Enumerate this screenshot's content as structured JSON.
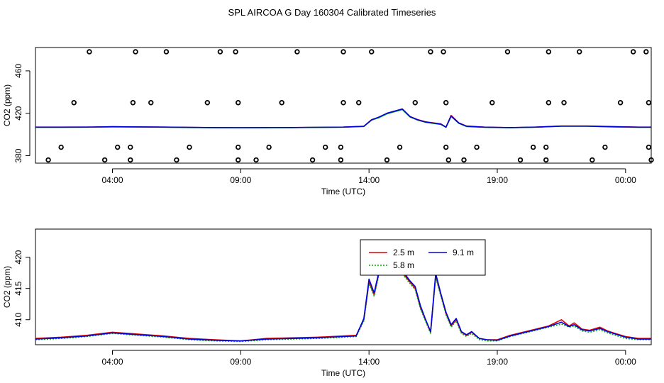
{
  "page": {
    "title": "SPL AIRCOA G  Day 160304  Calibrated Timeseries"
  },
  "colors": {
    "red": "#e00000",
    "green": "#00b000",
    "blue": "#0000e0",
    "axis": "#000000"
  },
  "chart_data": [
    {
      "type": "scatter",
      "xlabel": "Time (UTC)",
      "ylabel": "CO2 (ppm)",
      "xlim": [
        0,
        24
      ],
      "ylim": [
        373,
        482
      ],
      "xticks": [
        {
          "v": 3,
          "label": "04:00"
        },
        {
          "v": 8,
          "label": "09:00"
        },
        {
          "v": 13,
          "label": "14:00"
        },
        {
          "v": 18,
          "label": "19:00"
        },
        {
          "v": 23,
          "label": "00:00"
        }
      ],
      "yticks": [
        {
          "v": 380,
          "label": "380"
        },
        {
          "v": 420,
          "label": "420"
        },
        {
          "v": 460,
          "label": "460"
        }
      ],
      "grid": false,
      "points": [
        {
          "x": 0.5,
          "y": 376
        },
        {
          "x": 1.0,
          "y": 388
        },
        {
          "x": 1.5,
          "y": 430
        },
        {
          "x": 2.1,
          "y": 478
        },
        {
          "x": 2.7,
          "y": 376
        },
        {
          "x": 3.2,
          "y": 388
        },
        {
          "x": 3.7,
          "y": 388
        },
        {
          "x": 3.7,
          "y": 376
        },
        {
          "x": 3.8,
          "y": 430
        },
        {
          "x": 3.9,
          "y": 478
        },
        {
          "x": 4.5,
          "y": 430
        },
        {
          "x": 5.1,
          "y": 478
        },
        {
          "x": 5.5,
          "y": 376
        },
        {
          "x": 6.0,
          "y": 388
        },
        {
          "x": 6.7,
          "y": 430
        },
        {
          "x": 7.2,
          "y": 478
        },
        {
          "x": 7.8,
          "y": 478
        },
        {
          "x": 7.9,
          "y": 430
        },
        {
          "x": 7.9,
          "y": 388
        },
        {
          "x": 7.9,
          "y": 376
        },
        {
          "x": 8.6,
          "y": 376
        },
        {
          "x": 9.1,
          "y": 388
        },
        {
          "x": 9.6,
          "y": 430
        },
        {
          "x": 10.2,
          "y": 478
        },
        {
          "x": 10.8,
          "y": 376
        },
        {
          "x": 11.3,
          "y": 388
        },
        {
          "x": 11.9,
          "y": 388
        },
        {
          "x": 11.9,
          "y": 376
        },
        {
          "x": 12.0,
          "y": 430
        },
        {
          "x": 12.0,
          "y": 478
        },
        {
          "x": 12.6,
          "y": 430
        },
        {
          "x": 13.1,
          "y": 478
        },
        {
          "x": 13.7,
          "y": 376
        },
        {
          "x": 14.2,
          "y": 388
        },
        {
          "x": 14.8,
          "y": 430
        },
        {
          "x": 15.4,
          "y": 478
        },
        {
          "x": 15.9,
          "y": 478
        },
        {
          "x": 16.0,
          "y": 430
        },
        {
          "x": 16.0,
          "y": 388
        },
        {
          "x": 16.1,
          "y": 376
        },
        {
          "x": 16.7,
          "y": 376
        },
        {
          "x": 17.2,
          "y": 388
        },
        {
          "x": 17.8,
          "y": 430
        },
        {
          "x": 18.4,
          "y": 478
        },
        {
          "x": 18.9,
          "y": 376
        },
        {
          "x": 19.4,
          "y": 388
        },
        {
          "x": 19.9,
          "y": 388
        },
        {
          "x": 19.9,
          "y": 376
        },
        {
          "x": 20.0,
          "y": 430
        },
        {
          "x": 20.0,
          "y": 478
        },
        {
          "x": 20.6,
          "y": 430
        },
        {
          "x": 21.2,
          "y": 478
        },
        {
          "x": 21.7,
          "y": 376
        },
        {
          "x": 22.2,
          "y": 388
        },
        {
          "x": 22.8,
          "y": 430
        },
        {
          "x": 23.3,
          "y": 478
        },
        {
          "x": 23.8,
          "y": 478
        },
        {
          "x": 23.9,
          "y": 430
        },
        {
          "x": 23.9,
          "y": 388
        },
        {
          "x": 24.0,
          "y": 376
        }
      ],
      "series": [
        {
          "color": "red",
          "x": [
            0,
            1,
            2,
            3,
            4,
            5,
            6,
            7,
            8,
            9,
            10,
            11,
            12,
            12.8,
            13.1,
            13.4,
            13.7,
            14,
            14.3,
            14.6,
            14.9,
            15.2,
            15.5,
            15.8,
            16,
            16.2,
            16.5,
            16.8,
            17.5,
            18.5,
            19.5,
            20.5,
            21.5,
            22.5,
            23.5,
            24
          ],
          "y": [
            407,
            407,
            407,
            407.4,
            407.2,
            407,
            406.8,
            406.5,
            406.4,
            406.5,
            406.6,
            406.8,
            407,
            407.8,
            414,
            416,
            420,
            422,
            424,
            417,
            414,
            412,
            411,
            410,
            407,
            418,
            411,
            408,
            407,
            406.5,
            407,
            408,
            408,
            407.5,
            407,
            407
          ]
        },
        {
          "color": "green",
          "x": [
            0,
            1,
            2,
            3,
            4,
            5,
            6,
            7,
            8,
            9,
            10,
            11,
            12,
            12.8,
            13.1,
            13.4,
            13.7,
            14,
            14.3,
            14.6,
            14.9,
            15.2,
            15.5,
            15.8,
            16,
            16.2,
            16.5,
            16.8,
            17.5,
            18.5,
            19.5,
            20.5,
            21.5,
            22.5,
            23.5,
            24
          ],
          "y": [
            406.8,
            406.8,
            406.9,
            407.2,
            407.1,
            406.9,
            406.6,
            406.4,
            406.3,
            406.4,
            406.5,
            406.7,
            406.9,
            407.6,
            413.5,
            416,
            419.5,
            421.5,
            423.5,
            416.5,
            413.5,
            411.5,
            410.5,
            409.5,
            406.8,
            417,
            410.5,
            407.5,
            406.8,
            406.4,
            406.9,
            407.8,
            407.8,
            407.2,
            406.8,
            406.8
          ]
        },
        {
          "color": "blue",
          "x": [
            0,
            1,
            2,
            3,
            4,
            5,
            6,
            7,
            8,
            9,
            10,
            11,
            12,
            12.8,
            13.1,
            13.4,
            13.7,
            14,
            14.3,
            14.6,
            14.9,
            15.2,
            15.5,
            15.8,
            16,
            16.2,
            16.5,
            16.8,
            17.5,
            18.5,
            19.5,
            20.5,
            21.5,
            22.5,
            23.5,
            24
          ],
          "y": [
            406.9,
            406.9,
            407,
            407.3,
            407.2,
            407,
            406.7,
            406.5,
            406.4,
            406.5,
            406.6,
            406.8,
            407,
            407.7,
            413.8,
            416.5,
            420,
            422,
            424,
            416.8,
            413.8,
            411.8,
            410.8,
            409.8,
            406.9,
            417.5,
            410.8,
            407.8,
            406.9,
            406.5,
            407,
            407.9,
            407.9,
            407.3,
            406.9,
            406.9
          ]
        }
      ]
    },
    {
      "type": "line",
      "xlabel": "Time (UTC)",
      "ylabel": "CO2 (ppm)",
      "xlim": [
        0,
        24
      ],
      "ylim": [
        406,
        424.5
      ],
      "xticks": [
        {
          "v": 3,
          "label": "04:00"
        },
        {
          "v": 8,
          "label": "09:00"
        },
        {
          "v": 13,
          "label": "14:00"
        },
        {
          "v": 18,
          "label": "19:00"
        },
        {
          "v": 23,
          "label": "00:00"
        }
      ],
      "yticks": [
        {
          "v": 410,
          "label": "410"
        },
        {
          "v": 415,
          "label": "415"
        },
        {
          "v": 420,
          "label": "420"
        }
      ],
      "grid": false,
      "legend": {
        "position": "top-center",
        "entries": [
          {
            "label": "2.5 m",
            "color": "red",
            "dash": ""
          },
          {
            "label": "9.1 m",
            "color": "blue",
            "dash": ""
          },
          {
            "label": "5.8 m",
            "color": "green",
            "dash": "2,2"
          }
        ]
      },
      "series": [
        {
          "name": "2.5 m",
          "color": "red",
          "x": [
            0,
            1,
            2,
            3,
            4,
            5,
            6,
            7,
            8,
            9,
            10,
            11,
            12,
            12.5,
            12.8,
            13.0,
            13.2,
            13.5,
            13.8,
            14.0,
            14.2,
            14.4,
            14.6,
            14.8,
            15.0,
            15.2,
            15.4,
            15.6,
            15.8,
            16.0,
            16.2,
            16.4,
            16.6,
            16.8,
            17.0,
            17.3,
            17.6,
            18.0,
            18.5,
            19.0,
            19.5,
            20.0,
            20.5,
            20.8,
            21.0,
            21.3,
            21.6,
            22.0,
            22.3,
            22.6,
            23.0,
            23.5,
            24.0
          ],
          "y": [
            407,
            407.2,
            407.5,
            408,
            407.7,
            407.4,
            407,
            406.8,
            406.6,
            407,
            407.1,
            407.2,
            407.4,
            407.5,
            410,
            416,
            414,
            419.5,
            420,
            422,
            418,
            417,
            416,
            415,
            412,
            410,
            408,
            417,
            414,
            411,
            409,
            410,
            408,
            407.5,
            408,
            407,
            406.8,
            406.8,
            407.5,
            408,
            408.5,
            409,
            410,
            409,
            409.5,
            408.5,
            408.3,
            408.8,
            408.2,
            407.8,
            407.3,
            407,
            407
          ]
        },
        {
          "name": "5.8 m",
          "color": "green",
          "dash": "2,2",
          "x": [
            0,
            1,
            2,
            3,
            4,
            5,
            6,
            7,
            8,
            9,
            10,
            11,
            12,
            12.5,
            12.8,
            13.0,
            13.2,
            13.5,
            13.8,
            14.0,
            14.2,
            14.4,
            14.6,
            14.8,
            15.0,
            15.2,
            15.4,
            15.6,
            15.8,
            16.0,
            16.2,
            16.4,
            16.6,
            16.8,
            17.0,
            17.3,
            17.6,
            18.0,
            18.5,
            19.0,
            19.5,
            20.0,
            20.5,
            20.8,
            21.0,
            21.3,
            21.6,
            22.0,
            22.3,
            22.6,
            23.0,
            23.5,
            24.0
          ],
          "y": [
            406.8,
            407,
            407.3,
            407.8,
            407.5,
            407.2,
            406.8,
            406.6,
            406.5,
            406.8,
            406.9,
            407,
            407.2,
            407.3,
            409.8,
            415.8,
            413.8,
            419.3,
            419.8,
            421.8,
            417.8,
            416.8,
            415.8,
            414.8,
            411.8,
            409.8,
            407.8,
            416.8,
            413.8,
            410.8,
            408.8,
            409.8,
            407.8,
            407.3,
            407.8,
            406.8,
            406.6,
            406.6,
            407.3,
            407.8,
            408.3,
            408.8,
            409.3,
            408.8,
            409,
            408.2,
            408,
            408.4,
            407.9,
            407.5,
            407,
            406.8,
            406.8
          ]
        },
        {
          "name": "9.1 m",
          "color": "blue",
          "x": [
            0,
            1,
            2,
            3,
            4,
            5,
            6,
            7,
            8,
            9,
            10,
            11,
            12,
            12.5,
            12.8,
            13.0,
            13.2,
            13.5,
            13.8,
            14.0,
            14.2,
            14.4,
            14.6,
            14.8,
            15.0,
            15.2,
            15.4,
            15.6,
            15.8,
            16.0,
            16.2,
            16.4,
            16.6,
            16.8,
            17.0,
            17.3,
            17.6,
            18.0,
            18.5,
            19.0,
            19.5,
            20.0,
            20.5,
            20.8,
            21.0,
            21.3,
            21.6,
            22.0,
            22.3,
            22.6,
            23.0,
            23.5,
            24.0
          ],
          "y": [
            406.9,
            407.1,
            407.4,
            407.9,
            407.6,
            407.3,
            406.9,
            406.7,
            406.6,
            406.9,
            407,
            407.1,
            407.3,
            407.4,
            410.2,
            416.5,
            414.3,
            419.8,
            420.2,
            422.3,
            418.5,
            417.3,
            416.2,
            415.3,
            412.3,
            410.1,
            408.1,
            417.4,
            414.2,
            411.2,
            409.2,
            410.2,
            408.1,
            407.6,
            408.1,
            407,
            406.8,
            406.7,
            407.4,
            407.9,
            408.4,
            408.9,
            409.6,
            408.9,
            409.2,
            408.4,
            408.2,
            408.6,
            408.1,
            407.7,
            407.2,
            406.9,
            406.9
          ]
        }
      ]
    }
  ]
}
